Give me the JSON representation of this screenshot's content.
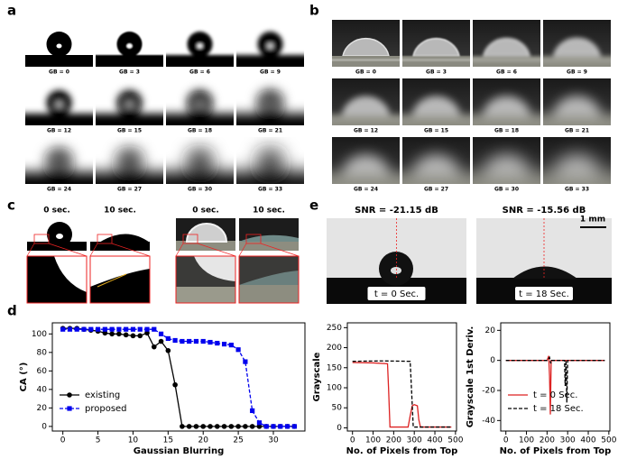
{
  "panels": {
    "a": {
      "label": "a",
      "captions": [
        "GB = 0",
        "GB = 3",
        "GB = 6",
        "GB = 9",
        "GB = 12",
        "GB = 15",
        "GB = 18",
        "GB = 21",
        "GB = 24",
        "GB = 27",
        "GB = 30",
        "GB = 33"
      ]
    },
    "b": {
      "label": "b",
      "captions": [
        "GB = 0",
        "GB = 3",
        "GB = 6",
        "GB = 9",
        "GB = 12",
        "GB = 15",
        "GB = 18",
        "GB = 21",
        "GB = 24",
        "GB = 27",
        "GB = 30",
        "GB = 33"
      ]
    },
    "c": {
      "label": "c",
      "times": [
        "0 sec.",
        "10 sec.",
        "0 sec.",
        "10 sec."
      ]
    },
    "d": {
      "label": "d"
    },
    "e": {
      "label": "e",
      "snr": [
        "SNR = -21.15 dB",
        "SNR = -15.56 dB"
      ],
      "times": [
        "t = 0 Sec.",
        "t = 18 Sec."
      ],
      "scale_bar": "1 mm"
    }
  },
  "chart_data": [
    {
      "type": "line",
      "xlabel": "Gaussian Blurring",
      "ylabel": "CA (°)",
      "x": [
        0,
        1,
        2,
        3,
        4,
        5,
        6,
        7,
        8,
        9,
        10,
        11,
        12,
        13,
        14,
        15,
        16,
        17,
        18,
        19,
        20,
        21,
        22,
        23,
        24,
        25,
        26,
        27,
        28,
        29,
        30,
        31,
        32,
        33
      ],
      "xlim": [
        -1.5,
        34.5
      ],
      "xticks": [
        0,
        5,
        10,
        15,
        20,
        25,
        30
      ],
      "ylim": [
        -5,
        112
      ],
      "yticks": [
        0,
        20,
        40,
        60,
        80,
        100
      ],
      "legend": "lower left",
      "series": [
        {
          "name": "existing",
          "color": "#000000",
          "line_style": "solid",
          "marker": "circle",
          "values": [
            106,
            106,
            106,
            105,
            104,
            103,
            101,
            100,
            100,
            99,
            98,
            98,
            101,
            86,
            92,
            82,
            45,
            0,
            0,
            0,
            0,
            0,
            0,
            0,
            0,
            0,
            0,
            0,
            0,
            0,
            0,
            0,
            0,
            0
          ]
        },
        {
          "name": "proposed",
          "color": "#0000ee",
          "line_style": "dashed",
          "marker": "square",
          "values": [
            105,
            105,
            105,
            105,
            105,
            105,
            105,
            105,
            105,
            105,
            105,
            105,
            105,
            105,
            100,
            95,
            93,
            92,
            92,
            92,
            92,
            91,
            90,
            89,
            88,
            83,
            70,
            17,
            4,
            0,
            0,
            0,
            0,
            0
          ]
        }
      ]
    },
    {
      "type": "line",
      "xlabel": "No. of Pixels from Top",
      "ylabel": "Grayscale",
      "xlim": [
        -25,
        505
      ],
      "xticks": [
        0,
        100,
        200,
        300,
        400,
        500
      ],
      "ylim": [
        -8,
        262
      ],
      "yticks": [
        0,
        50,
        100,
        150,
        200,
        250
      ],
      "series": [
        {
          "color": "#dd2222",
          "line_style": "solid",
          "x": [
            0,
            100,
            170,
            175,
            182,
            270,
            280,
            290,
            300,
            315,
            322,
            330,
            480
          ],
          "values": [
            163,
            162,
            160,
            100,
            2,
            2,
            30,
            55,
            58,
            55,
            20,
            2,
            2
          ]
        },
        {
          "color": "#000000",
          "line_style": "dashed",
          "x": [
            0,
            150,
            280,
            288,
            295,
            480
          ],
          "values": [
            166,
            167,
            166,
            80,
            2,
            2
          ]
        }
      ]
    },
    {
      "type": "line",
      "xlabel": "No. of Pixels from Top",
      "ylabel": "Grayscale 1st Deriv.",
      "xlim": [
        -25,
        505
      ],
      "xticks": [
        0,
        100,
        200,
        300,
        400,
        500
      ],
      "ylim": [
        -47,
        25
      ],
      "yticks": [
        -40,
        -20,
        0,
        20
      ],
      "legend": "lower left",
      "series": [
        {
          "name": "t = 0 Sec.",
          "color": "#dd2222",
          "line_style": "solid",
          "x": [
            0,
            200,
            208,
            212,
            216,
            220,
            480
          ],
          "values": [
            0,
            0,
            3,
            -10,
            -36,
            0,
            0
          ]
        },
        {
          "name": "t = 18 Sec.",
          "color": "#000000",
          "line_style": "dashed",
          "x": [
            0,
            200,
            212,
            218,
            222,
            285,
            288,
            292,
            296,
            300,
            480
          ],
          "values": [
            0,
            0,
            2,
            -2,
            0,
            0,
            -17,
            0,
            -28,
            0,
            0
          ]
        }
      ]
    }
  ]
}
